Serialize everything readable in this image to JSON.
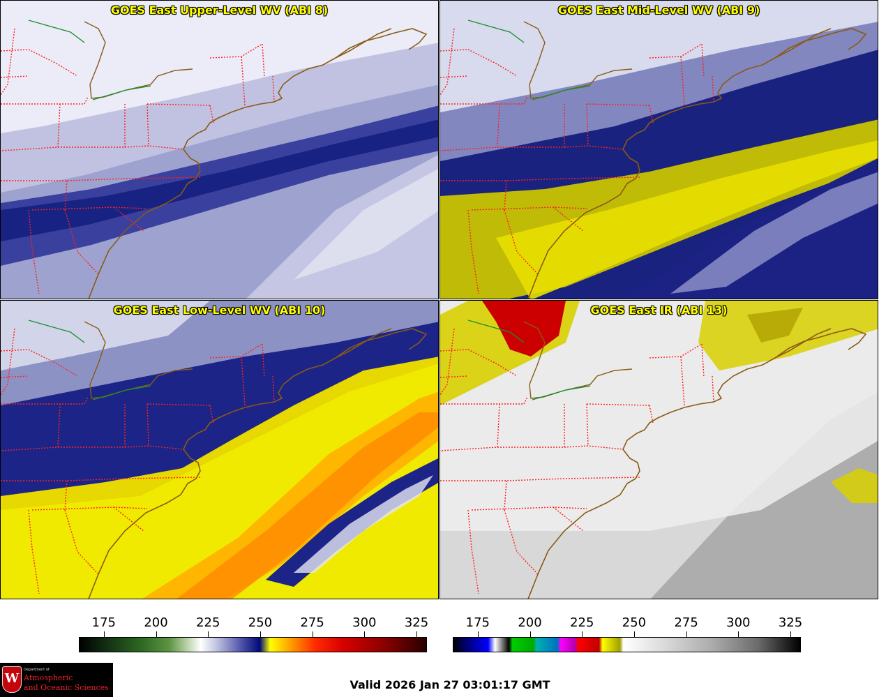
{
  "panels": [
    {
      "id": "p1",
      "title": "GOES East Upper-Level WV (ABI 8)",
      "product": "upper"
    },
    {
      "id": "p2",
      "title": "GOES East Mid-Level WV (ABI 9)",
      "product": "mid"
    },
    {
      "id": "p3",
      "title": "GOES East Low-Level WV (ABI 10)",
      "product": "low"
    },
    {
      "id": "p4",
      "title": "GOES East IR (ABI 13)",
      "product": "ir"
    }
  ],
  "colorbars": {
    "wv": {
      "ticks": [
        "175",
        "200",
        "225",
        "250",
        "275",
        "300",
        "325"
      ],
      "range": [
        163,
        330
      ]
    },
    "ir": {
      "ticks": [
        "175",
        "200",
        "225",
        "250",
        "275",
        "300",
        "325"
      ],
      "range": [
        163,
        330
      ]
    }
  },
  "colors": {
    "state_borders": "#ff2020",
    "coastline": "#8a5a14",
    "lake_outline": "#1a8f2e",
    "title_text": "#ffff00"
  },
  "logo": {
    "dept_text": "Department of",
    "line1": "Atmospheric",
    "line2": "and Oceanic Sciences",
    "shield_letter": "W"
  },
  "valid_time": "Valid 2026 Jan 27 03:01:17 GMT"
}
